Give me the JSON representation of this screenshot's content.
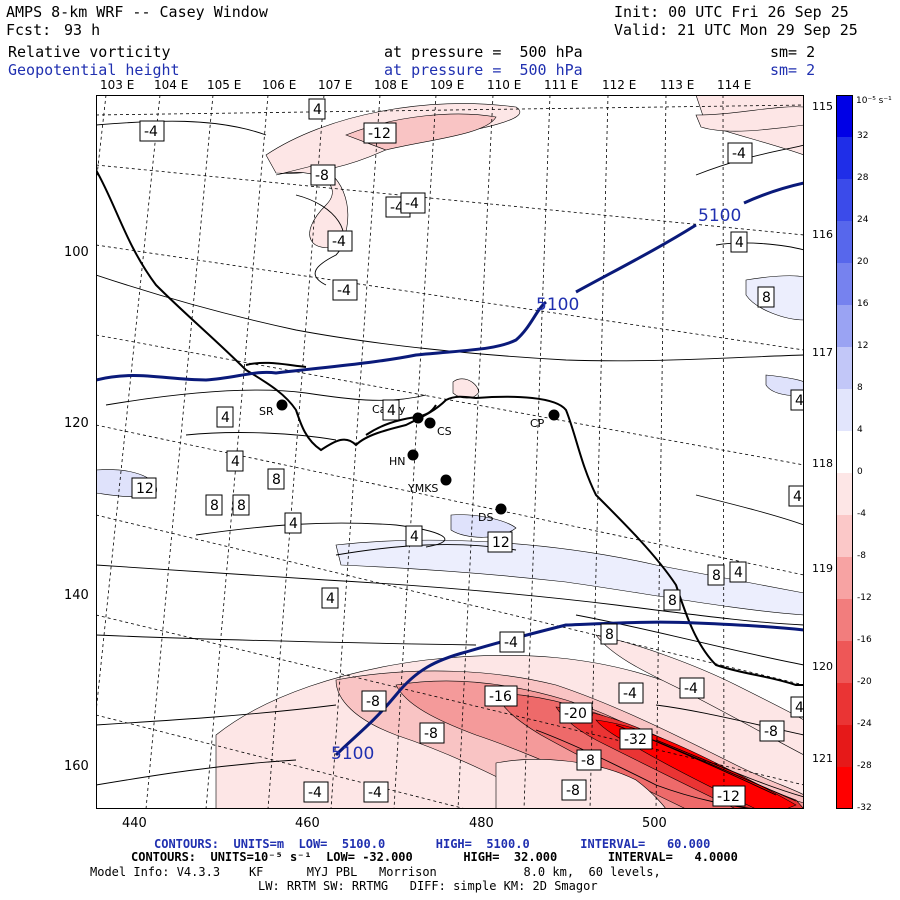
{
  "header": {
    "model": "AMPS 8-km WRF -- Casey Window",
    "init": "Init: 00 UTC Fri 26 Sep 25",
    "fcst_label": "Fcst:",
    "fcst_value": "93 h",
    "valid": "Valid: 21 UTC Mon 29 Sep 25",
    "field1": "Relative vorticity",
    "field1_level": "at pressure =  500 hPa",
    "field1_sm": "sm= 2",
    "field2": "Geopotential height",
    "field2_level": "at pressure =  500 hPa",
    "field2_sm": "sm= 2"
  },
  "lon_labels": [
    "103 E",
    "104 E",
    "105 E",
    "106 E",
    "107 E",
    "108 E",
    "109 E",
    "110 E",
    "111 E",
    "112 E",
    "113 E",
    "114 E"
  ],
  "lat_labels_right": [
    "115 E",
    "116 E",
    "117 E",
    "118 E",
    "119 E",
    "120 E",
    "121 E"
  ],
  "y_ticks": [
    "100",
    "120",
    "140",
    "160"
  ],
  "x_ticks": [
    "440",
    "460",
    "480",
    "500"
  ],
  "stations": [
    {
      "name": "SR"
    },
    {
      "name": "Casey"
    },
    {
      "name": "CS"
    },
    {
      "name": "CP"
    },
    {
      "name": "HN"
    },
    {
      "name": "YMKS"
    },
    {
      "name": "DS"
    }
  ],
  "contour_labels": {
    "height": [
      "5100",
      "5100",
      "5100"
    ],
    "vorticity": [
      "-4",
      "-12",
      "-8",
      "-4",
      "-4",
      "-4",
      "-4",
      "-4",
      "4",
      "8",
      "8",
      "4",
      "4",
      "4",
      "12",
      "8",
      "8",
      "4",
      "4",
      "12",
      "4",
      "8",
      "4",
      "4",
      "8",
      "4",
      "-4",
      "8",
      "-16",
      "-8",
      "-4",
      "-4",
      "-8",
      "-20",
      "-32",
      "-8",
      "-8",
      "-12",
      "-4",
      "-4",
      "-8",
      "4",
      "4"
    ]
  },
  "colorbar": {
    "unit": "10⁻⁵ s⁻¹",
    "ticks": [
      "32",
      "28",
      "24",
      "20",
      "16",
      "12",
      "8",
      "4",
      "0",
      "-4",
      "-8",
      "-12",
      "-16",
      "-20",
      "-24",
      "-28",
      "-32"
    ],
    "colors": [
      "#0000e6",
      "#1f2ee8",
      "#3b4bea",
      "#5767ec",
      "#7682ef",
      "#9aa3f3",
      "#c2c7f8",
      "#e2e5fc",
      "#ffffff",
      "#fde6e6",
      "#fbc8c8",
      "#f7a3a3",
      "#f27d7d",
      "#ee5757",
      "#ea3434",
      "#e61919",
      "#ff0000"
    ]
  },
  "footer": {
    "line1": "CONTOURS:  UNITS=m  LOW=  5100.0       HIGH=  5100.0       INTERVAL=   60.000",
    "line2": "CONTOURS:  UNITS=10⁻⁵ s⁻¹  LOW= -32.000       HIGH=  32.000       INTERVAL=   4.0000",
    "line3": "Model Info: V4.3.3    KF      MYJ PBL   Morrison            8.0 km,  60 levels,",
    "line4": "LW: RRTM SW: RRTMG   DIFF: simple KM: 2D Smagor"
  }
}
